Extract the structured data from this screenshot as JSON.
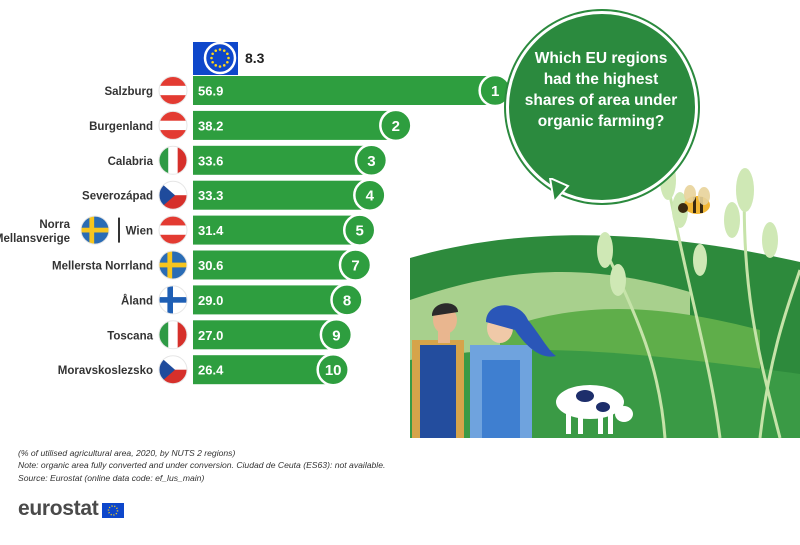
{
  "question": "Which EU regions had the highest shares of area under organic farming?",
  "eu": {
    "value": 8.3,
    "label": "8.3"
  },
  "chart_data": {
    "type": "bar",
    "orientation": "horizontal",
    "categories": [
      "Salzburg",
      "Burgenland",
      "Calabria",
      "Severozápad",
      "Norra Mellansverige | Wien",
      "Mellersta Norrland",
      "Åland",
      "Toscana",
      "Moravskoslezsko"
    ],
    "values": [
      56.9,
      38.2,
      33.6,
      33.3,
      31.4,
      30.6,
      29.0,
      27.0,
      26.4
    ],
    "value_labels": [
      "56.9",
      "38.2",
      "33.6",
      "33.3",
      "31.4",
      "30.6",
      "29.0",
      "27.0",
      "26.4"
    ],
    "ranks": [
      "1",
      "2",
      "3",
      "4",
      "5",
      "7",
      "8",
      "9",
      "10"
    ],
    "flags": [
      [
        "at"
      ],
      [
        "at"
      ],
      [
        "it"
      ],
      [
        "cz"
      ],
      [
        "se",
        "at"
      ],
      [
        "se"
      ],
      [
        "fi"
      ],
      [
        "it"
      ],
      [
        "cz"
      ]
    ],
    "rows": [
      {
        "labels": [
          "Salzburg"
        ]
      },
      {
        "labels": [
          "Burgenland"
        ]
      },
      {
        "labels": [
          "Calabria"
        ]
      },
      {
        "labels": [
          "Severozápad"
        ]
      },
      {
        "labels": [
          "Norra",
          "Mellansverige",
          "Wien"
        ]
      },
      {
        "labels": [
          "Mellersta Norrland"
        ]
      },
      {
        "labels": [
          "Åland"
        ]
      },
      {
        "labels": [
          "Toscana"
        ]
      },
      {
        "labels": [
          "Moravskoslezsko"
        ]
      }
    ],
    "reference": {
      "name": "EU",
      "value": 8.3
    },
    "colors": {
      "bar": "#2e9e3f",
      "text": "#ffffff",
      "label": "#333333"
    }
  },
  "notes": [
    "(% of utilised agricultural area, 2020, by NUTS 2 regions)",
    "Note: organic area fully converted and under conversion. Ciudad de Ceuta (ES63): not available.",
    "Source: Eurostat (online data code: ef_lus_main)"
  ],
  "logo": "eurostat",
  "illustration_icons": [
    "bee-icon",
    "wheat-icon",
    "cow-icon",
    "farmer-man-icon",
    "farmer-woman-icon"
  ]
}
